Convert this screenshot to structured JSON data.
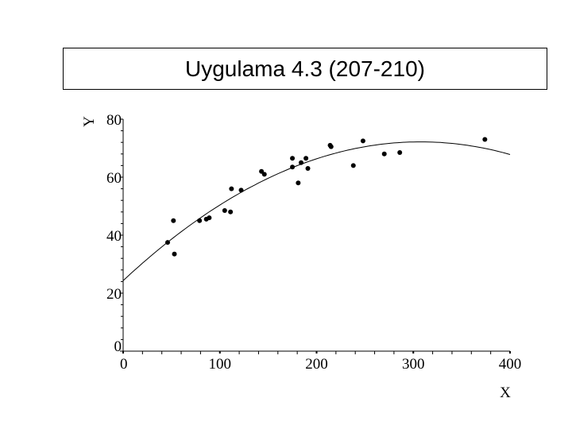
{
  "chart_data": {
    "type": "scatter",
    "title": "Uygulama 4.3 (207-210)",
    "xlabel": "X",
    "ylabel": "Y",
    "xlim": [
      0,
      400
    ],
    "ylim": [
      0,
      80
    ],
    "x_ticks": [
      0,
      100,
      200,
      300,
      400
    ],
    "y_ticks": [
      0,
      20,
      40,
      60,
      80
    ],
    "x_tick_labels": [
      "0",
      "100",
      "200",
      "300",
      "400"
    ],
    "y_tick_labels": [
      "0",
      "20",
      "40",
      "60",
      "80"
    ],
    "grid": false,
    "points": [
      {
        "x": 46,
        "y": 37.5
      },
      {
        "x": 52,
        "y": 45
      },
      {
        "x": 53,
        "y": 33.5
      },
      {
        "x": 79,
        "y": 45
      },
      {
        "x": 86,
        "y": 45.5
      },
      {
        "x": 89,
        "y": 46
      },
      {
        "x": 105,
        "y": 48.5
      },
      {
        "x": 111,
        "y": 48
      },
      {
        "x": 112,
        "y": 56
      },
      {
        "x": 122,
        "y": 55.5
      },
      {
        "x": 143,
        "y": 62
      },
      {
        "x": 146,
        "y": 61
      },
      {
        "x": 175,
        "y": 66.5
      },
      {
        "x": 175,
        "y": 63.5
      },
      {
        "x": 181,
        "y": 58
      },
      {
        "x": 184,
        "y": 65
      },
      {
        "x": 189,
        "y": 66.5
      },
      {
        "x": 191,
        "y": 63
      },
      {
        "x": 214,
        "y": 71
      },
      {
        "x": 215,
        "y": 70.5
      },
      {
        "x": 238,
        "y": 64
      },
      {
        "x": 248,
        "y": 72.5
      },
      {
        "x": 270,
        "y": 68
      },
      {
        "x": 286,
        "y": 68.5
      },
      {
        "x": 374,
        "y": 73
      }
    ],
    "fit": {
      "type": "quadratic",
      "coefficients": [
        24.3,
        0.3116,
        -0.000507
      ],
      "x_range": [
        0,
        400
      ]
    }
  }
}
